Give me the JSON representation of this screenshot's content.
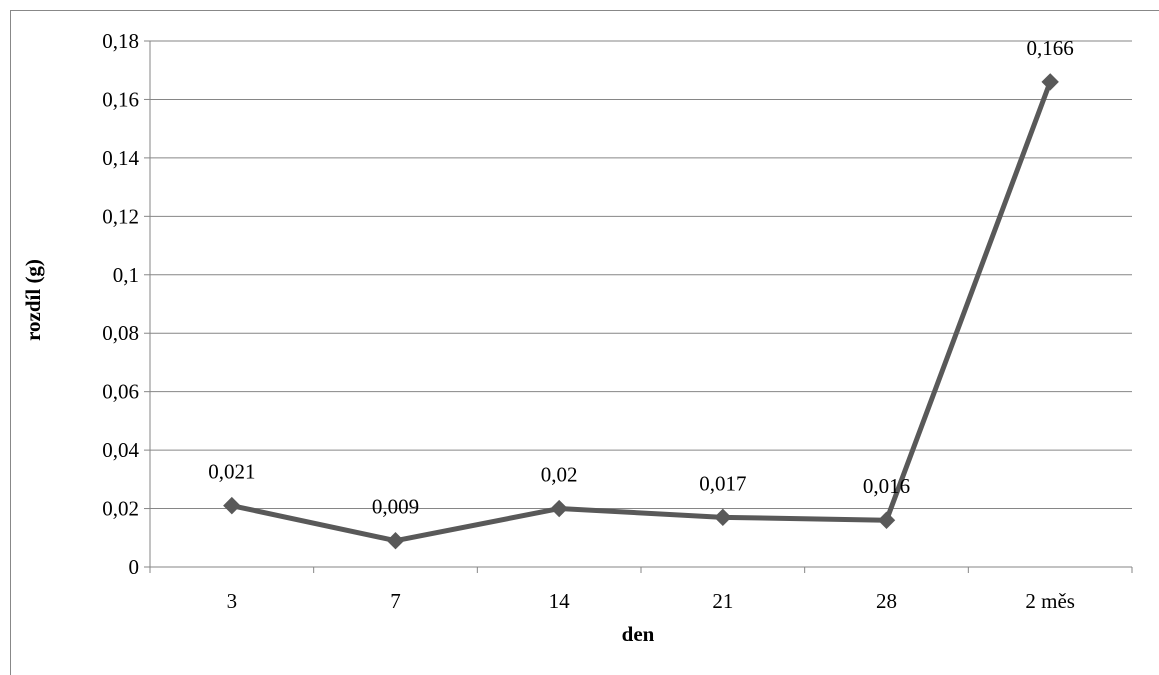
{
  "chart_data": {
    "type": "line",
    "title": "",
    "xlabel": "den",
    "ylabel": "rozdíl (g)",
    "categories": [
      "3",
      "7",
      "14",
      "21",
      "28",
      "2 měs"
    ],
    "series": [
      {
        "values": [
          0.021,
          0.009,
          0.02,
          0.017,
          0.016,
          0.166
        ],
        "data_labels": [
          "0,021",
          "0,009",
          "0,02",
          "0,017",
          "0,016",
          "0,166"
        ],
        "color": "#595959",
        "marker": "diamond"
      }
    ],
    "ylim": [
      0,
      0.18
    ],
    "yticks": [
      0,
      0.02,
      0.04,
      0.06,
      0.08,
      0.1,
      0.12,
      0.14,
      0.16,
      0.18
    ],
    "ytick_labels": [
      "0",
      "0,02",
      "0,04",
      "0,06",
      "0,08",
      "0,1",
      "0,12",
      "0,14",
      "0,16",
      "0,18"
    ],
    "grid": true,
    "gridline_color": "#868686",
    "legend": "none"
  }
}
